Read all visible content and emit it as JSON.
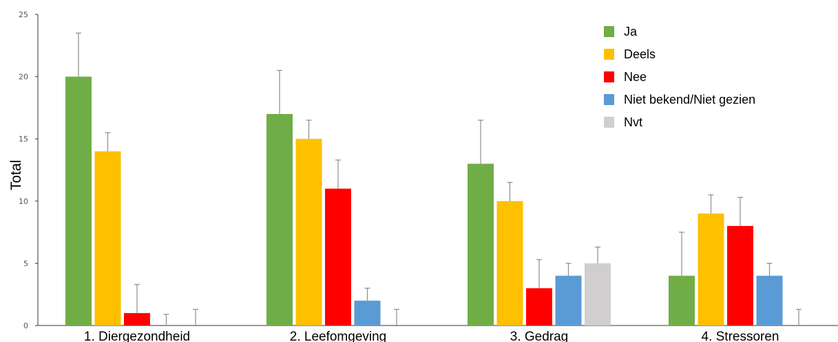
{
  "chart_data": {
    "type": "bar",
    "title": "",
    "xlabel": "",
    "ylabel": "Total",
    "ylim": [
      0,
      25
    ],
    "yticks": [
      0,
      5,
      10,
      15,
      20,
      25
    ],
    "grid": false,
    "legend_position": "top-right",
    "categories": [
      "1. Diergezondheid",
      "2. Leefomgeving",
      "3. Gedrag",
      "4.  Stressoren"
    ],
    "series": [
      {
        "name": "Ja",
        "color": "#70AD47",
        "values": [
          20,
          17,
          13,
          4
        ],
        "err_upper": [
          23.5,
          20.5,
          16.5,
          7.5
        ]
      },
      {
        "name": "Deels",
        "color": "#FFC000",
        "values": [
          14,
          15,
          10,
          9
        ],
        "err_upper": [
          15.5,
          16.5,
          11.5,
          10.5
        ]
      },
      {
        "name": "Nee",
        "color": "#FF0000",
        "values": [
          1,
          11,
          3,
          8
        ],
        "err_upper": [
          3.3,
          13.3,
          5.3,
          10.3
        ]
      },
      {
        "name": "Niet bekend/Niet gezien",
        "color": "#5B9BD5",
        "values": [
          0,
          2,
          4,
          4
        ],
        "err_upper": [
          0.9,
          3.0,
          5.0,
          5.0
        ]
      },
      {
        "name": "Nvt",
        "color": "#D0CECE",
        "values": [
          0,
          0,
          5,
          0
        ],
        "err_upper": [
          1.3,
          1.3,
          6.3,
          1.3
        ]
      }
    ]
  }
}
